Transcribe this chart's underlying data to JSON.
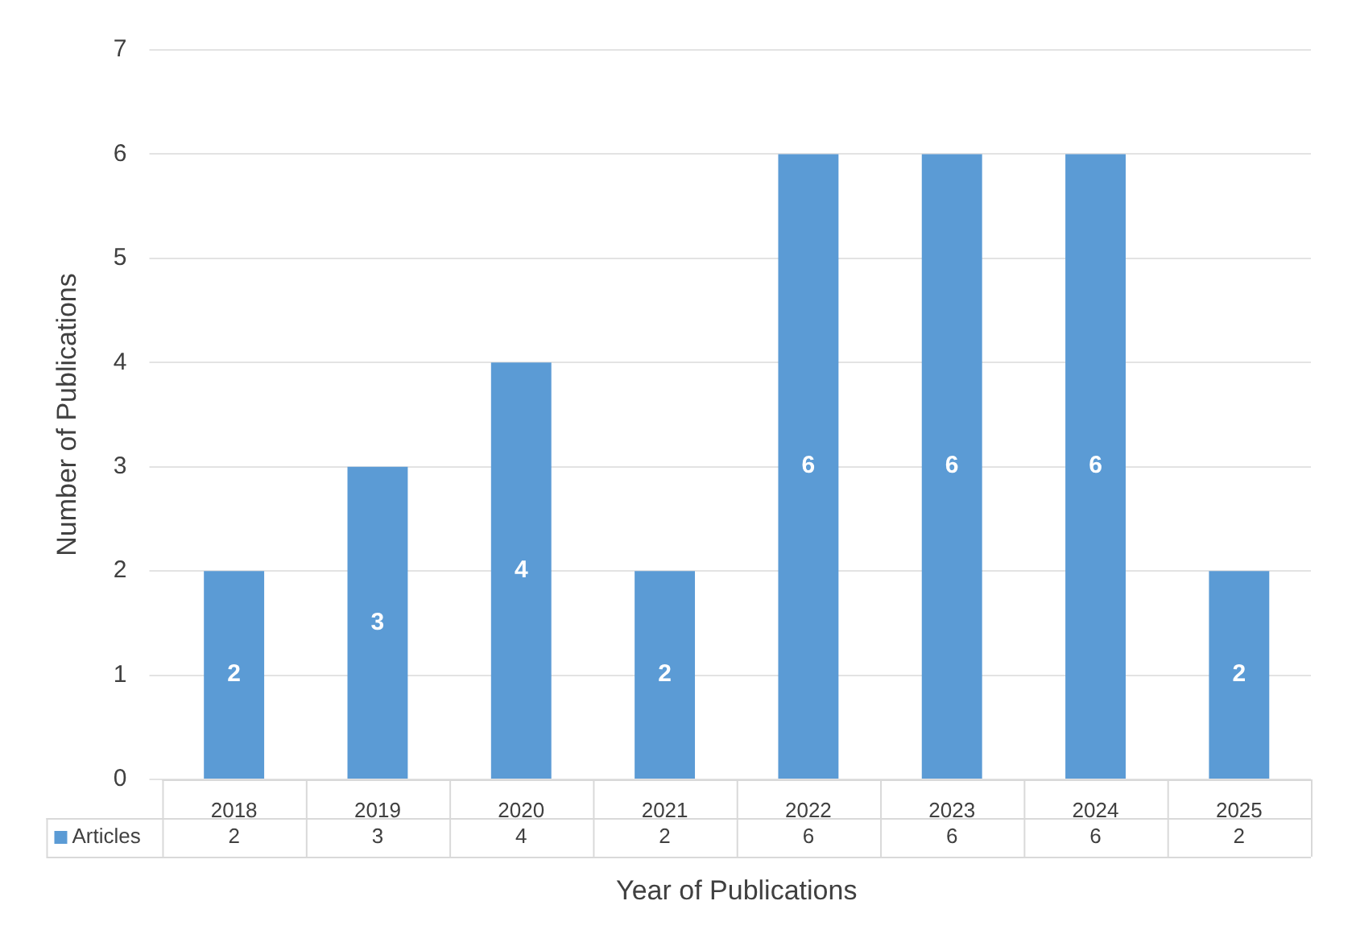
{
  "chart_data": {
    "type": "bar",
    "xlabel": "Year of Publications",
    "ylabel": "Number of Publications",
    "categories": [
      "2018",
      "2019",
      "2020",
      "2021",
      "2022",
      "2023",
      "2024",
      "2025"
    ],
    "series": [
      {
        "name": "Articles",
        "color": "#5b9bd5",
        "values": [
          2,
          3,
          4,
          2,
          6,
          6,
          6,
          2
        ],
        "value_labels": [
          "2",
          "3",
          "4",
          "2",
          "6",
          "6",
          "6",
          "2"
        ]
      }
    ],
    "ylim": [
      0,
      7
    ],
    "yticks": [
      0,
      1,
      2,
      3,
      4,
      5,
      6,
      7
    ],
    "grid": "y",
    "legend": "bottom",
    "annotations": [
      "2",
      "3",
      "4",
      "2",
      "6",
      "6",
      "6",
      "2"
    ]
  }
}
